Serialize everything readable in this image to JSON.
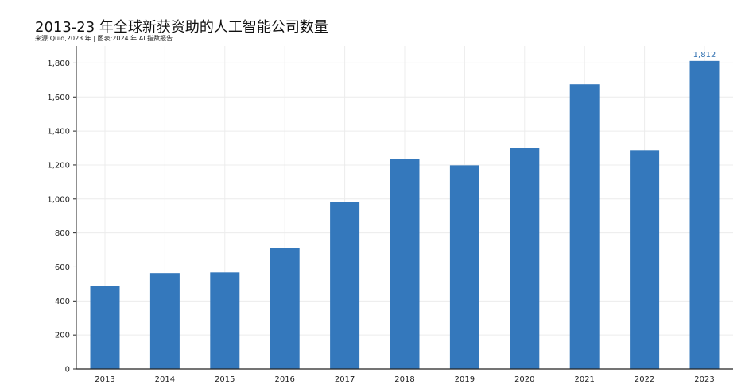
{
  "title": "2013-23 年全球新获资助的人工智能公司数量",
  "subtitle": "来源:Quid,2023 年 | 图表:2024 年 AI 指数报告",
  "chart_data": {
    "type": "bar",
    "categories": [
      "2013",
      "2014",
      "2015",
      "2016",
      "2017",
      "2018",
      "2019",
      "2020",
      "2021",
      "2022",
      "2023"
    ],
    "values": [
      490,
      564,
      568,
      710,
      982,
      1234,
      1198,
      1298,
      1675,
      1287,
      1812
    ],
    "data_labels": [
      {
        "category": "2023",
        "text": "1,812"
      }
    ],
    "yticks": [
      "0",
      "200",
      "400",
      "600",
      "800",
      "1,000",
      "1,200",
      "1,400",
      "1,600",
      "1,800"
    ],
    "ytick_values": [
      0,
      200,
      400,
      600,
      800,
      1000,
      1200,
      1400,
      1600,
      1800
    ],
    "ylim": [
      0,
      1900
    ],
    "xlabel": "",
    "ylabel": "",
    "grid": true,
    "bar_color": "#3478bc",
    "grid_color": "#ececec",
    "axis_color": "#222222",
    "label_color": "#2f6fb0"
  }
}
